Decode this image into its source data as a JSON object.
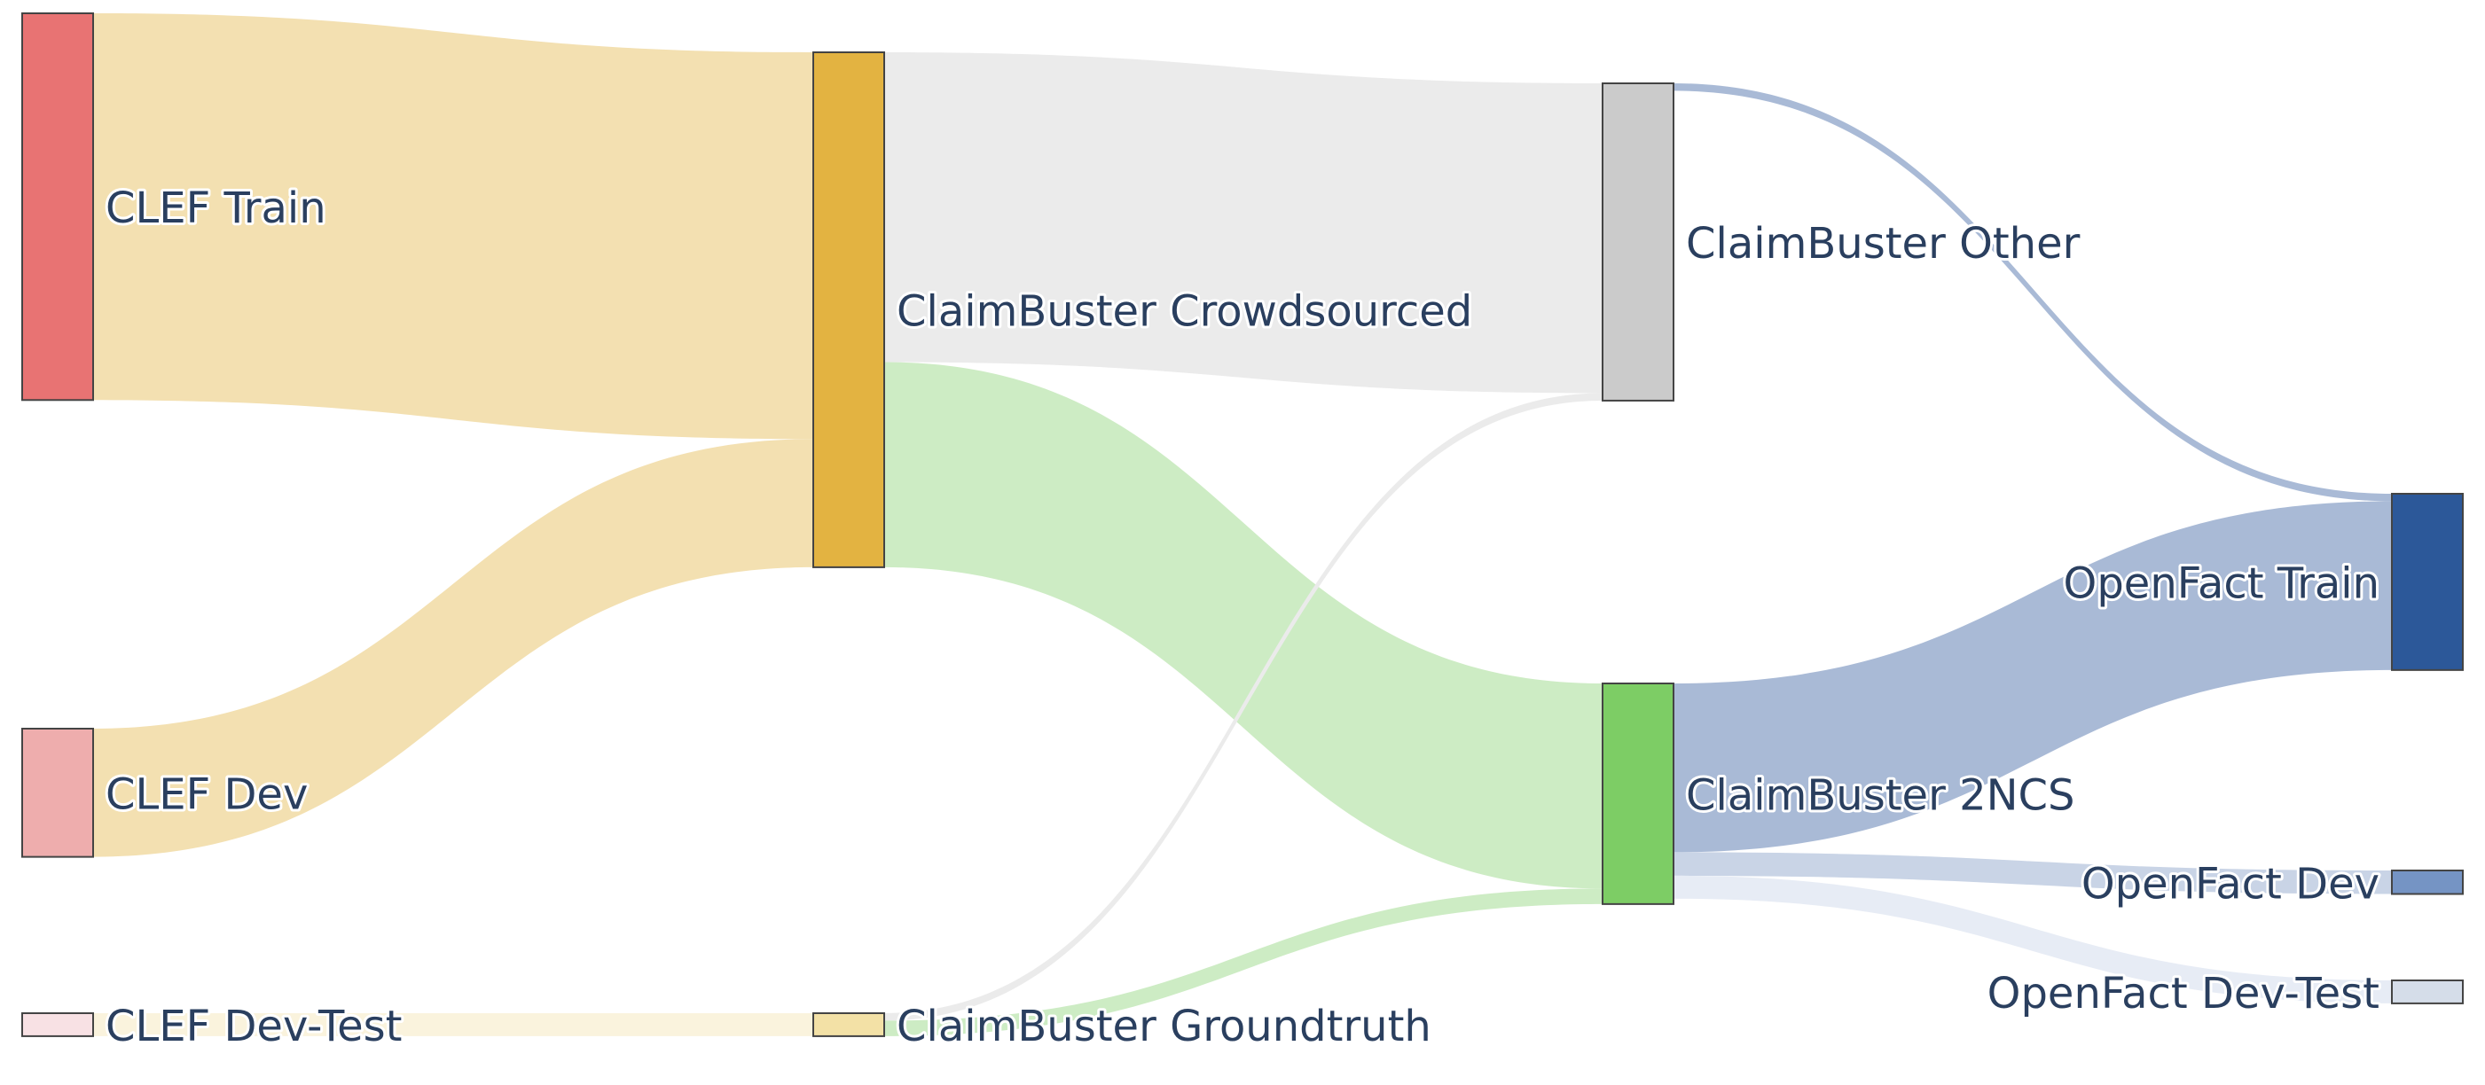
{
  "diagram": {
    "type": "sankey",
    "nodes": [
      {
        "id": "clef_train",
        "label": "CLEF Train",
        "color": "#E87373"
      },
      {
        "id": "clef_dev",
        "label": "CLEF Dev",
        "color": "#EEADAD"
      },
      {
        "id": "clef_devtest",
        "label": "CLEF Dev-Test",
        "color": "#F8E1E4"
      },
      {
        "id": "cb_crowd",
        "label": "ClaimBuster Crowdsourced",
        "color": "#E3B341"
      },
      {
        "id": "cb_gt",
        "label": "ClaimBuster Groundtruth",
        "color": "#F3E1A6"
      },
      {
        "id": "cb_other",
        "label": "ClaimBuster Other",
        "color": "#CBCBCB"
      },
      {
        "id": "cb_2ncs",
        "label": "ClaimBuster 2NCS",
        "color": "#7DCD65"
      },
      {
        "id": "of_train",
        "label": "OpenFact Train",
        "color": "#2C5899"
      },
      {
        "id": "of_dev",
        "label": "OpenFact Dev",
        "color": "#7594C4"
      },
      {
        "id": "of_devtest",
        "label": "OpenFact Dev-Test",
        "color": "#D5DDE9"
      }
    ],
    "links": [
      {
        "source": "clef_train",
        "target": "cb_crowd",
        "value": 724,
        "color": "#F3E0B1"
      },
      {
        "source": "clef_dev",
        "target": "cb_crowd",
        "value": 240,
        "color": "#F3E0B1"
      },
      {
        "source": "clef_devtest",
        "target": "cb_gt",
        "value": 43,
        "color": "#FAF3DD"
      },
      {
        "source": "cb_crowd",
        "target": "cb_other",
        "value": 580,
        "color": "#EBEBEB"
      },
      {
        "source": "cb_crowd",
        "target": "cb_2ncs",
        "value": 384,
        "color": "#CDECC4"
      },
      {
        "source": "cb_gt",
        "target": "cb_other",
        "value": 14,
        "color": "#EBEBEB"
      },
      {
        "source": "cb_gt",
        "target": "cb_2ncs",
        "value": 29,
        "color": "#CDECC4"
      },
      {
        "source": "cb_other",
        "target": "of_train",
        "value": 14,
        "color": "#A9BAD6"
      },
      {
        "source": "cb_2ncs",
        "target": "of_train",
        "value": 316,
        "color": "#A9BAD6"
      },
      {
        "source": "cb_2ncs",
        "target": "of_dev",
        "value": 44,
        "color": "#C9D4E6"
      },
      {
        "source": "cb_2ncs",
        "target": "of_devtest",
        "value": 43,
        "color": "#E7ECF5"
      }
    ]
  }
}
